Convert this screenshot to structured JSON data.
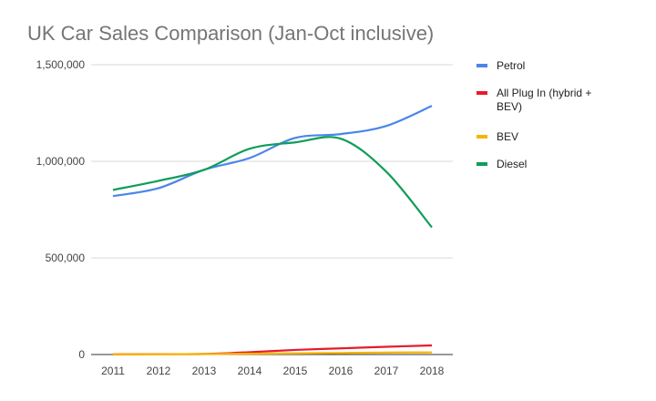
{
  "chart_data": {
    "type": "line",
    "title": "UK Car Sales Comparison (Jan-Oct inclusive)",
    "xlabel": "",
    "ylabel": "",
    "categories": [
      "2011",
      "2012",
      "2013",
      "2014",
      "2015",
      "2016",
      "2017",
      "2018"
    ],
    "ylim": [
      0,
      1500000
    ],
    "yticks": [
      0,
      500000,
      1000000,
      1500000
    ],
    "ytick_labels": [
      "0",
      "500,000",
      "1,000,000",
      "1,500,000"
    ],
    "grid": true,
    "legend_position": "right",
    "smooth": true,
    "series": [
      {
        "name": "Petrol",
        "color": "#4a86e8",
        "values": [
          820000,
          861000,
          956000,
          1017000,
          1121000,
          1141000,
          1183000,
          1287000
        ]
      },
      {
        "name": "All Plug In (hybrid + BEV)",
        "color": "#e8192c",
        "values": [
          1000,
          2000,
          3000,
          12000,
          24000,
          32000,
          40000,
          47000
        ]
      },
      {
        "name": "BEV",
        "color": "#f6b400",
        "values": [
          1000,
          1500,
          2500,
          4000,
          6000,
          8000,
          10000,
          11000
        ]
      },
      {
        "name": "Diesel",
        "color": "#0f9d58",
        "values": [
          852000,
          899000,
          956000,
          1065000,
          1098000,
          1117000,
          946000,
          658000
        ]
      }
    ]
  }
}
